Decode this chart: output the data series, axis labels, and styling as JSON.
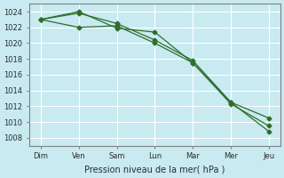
{
  "background_color": "#c8eaf0",
  "grid_color": "#ffffff",
  "line_color": "#2d6e2d",
  "x_labels": [
    "Dim",
    "Ven",
    "Sam",
    "Lun",
    "Mar",
    "Mer",
    "Jeu"
  ],
  "x_ticks": [
    0,
    1,
    2,
    3,
    4,
    5,
    6
  ],
  "xlabel": "Pression niveau de la mer( hPa )",
  "ylim": [
    1007,
    1025
  ],
  "yticks": [
    1008,
    1010,
    1012,
    1014,
    1016,
    1018,
    1020,
    1022,
    1024
  ],
  "series": [
    [
      1023.0,
      1022.0,
      1022.2,
      1020.0,
      1017.5,
      1012.3,
      1009.5
    ],
    [
      1023.0,
      1023.8,
      1022.5,
      1020.4,
      1017.8,
      1012.5,
      1008.8
    ],
    [
      1023.0,
      1024.0,
      1021.9,
      1021.4,
      1017.5,
      1012.5,
      1010.5
    ]
  ],
  "marker": "D",
  "markersize": 2.5,
  "linewidth": 0.9
}
